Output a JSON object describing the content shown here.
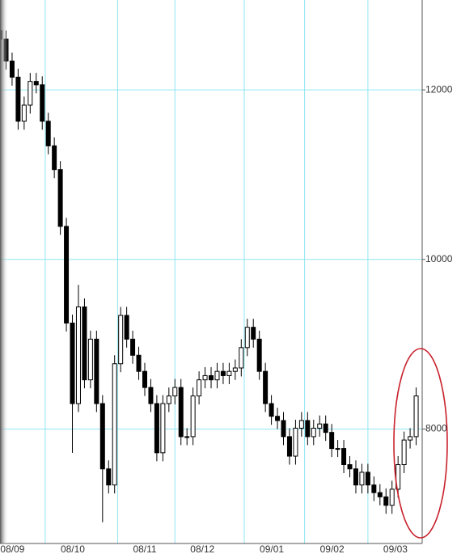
{
  "chart_data": {
    "type": "candlestick",
    "x": [
      0,
      2,
      4,
      6,
      8,
      10,
      12,
      14,
      16,
      18,
      20,
      22,
      24,
      26,
      28,
      30,
      32,
      34,
      36,
      38,
      40,
      42,
      44,
      46,
      48,
      50,
      52,
      54,
      56,
      58,
      60,
      62,
      64,
      66,
      68,
      70,
      72,
      74,
      76,
      78,
      80,
      82,
      84,
      86,
      88,
      90,
      92,
      94,
      96,
      98,
      100,
      102,
      104,
      106,
      108,
      110,
      112,
      114,
      116,
      118,
      120,
      122,
      124,
      126,
      128,
      130,
      132,
      134,
      136,
      138
    ],
    "open": [
      12700,
      12600,
      12340,
      12150,
      11630,
      11820,
      12100,
      12060,
      11630,
      11340,
      11060,
      10390,
      9250,
      8300,
      9440,
      8580,
      9060,
      8300,
      7530,
      7340,
      8770,
      9340,
      9060,
      8870,
      8680,
      8490,
      8300,
      7720,
      8300,
      8390,
      8490,
      7910,
      7910,
      8390,
      8580,
      8630,
      8580,
      8680,
      8630,
      8680,
      8720,
      8960,
      9200,
      9060,
      8680,
      8300,
      8150,
      8100,
      7910,
      7680,
      8010,
      8100,
      7910,
      8010,
      8060,
      7960,
      7770,
      7770,
      7580,
      7530,
      7340,
      7490,
      7340,
      7250,
      7200,
      7100,
      7290,
      7580,
      7870,
      7910
    ],
    "high": [
      12800,
      12700,
      12440,
      12250,
      11920,
      12200,
      12200,
      12160,
      11730,
      11440,
      11160,
      10490,
      9350,
      9700,
      9540,
      9160,
      9160,
      8400,
      7630,
      8870,
      9440,
      9440,
      9160,
      8970,
      8780,
      8590,
      8400,
      8400,
      8490,
      8590,
      8590,
      8010,
      8490,
      8680,
      8730,
      8730,
      8780,
      8780,
      8780,
      8820,
      9060,
      9300,
      9300,
      9160,
      8780,
      8400,
      8250,
      8200,
      8010,
      8110,
      8200,
      8200,
      8110,
      8160,
      8160,
      8060,
      7870,
      7870,
      7680,
      7630,
      7590,
      7590,
      7440,
      7350,
      7300,
      7390,
      7680,
      7970,
      8010,
      8490
    ],
    "low": [
      12500,
      12240,
      12050,
      11530,
      11530,
      11720,
      11960,
      11530,
      11240,
      10960,
      10290,
      9150,
      7720,
      8200,
      8480,
      8480,
      8200,
      6900,
      7240,
      7240,
      8670,
      8960,
      8770,
      8580,
      8390,
      8200,
      7620,
      7620,
      8200,
      8290,
      7810,
      7810,
      7810,
      8290,
      8480,
      8480,
      8480,
      8530,
      8530,
      8580,
      8620,
      8860,
      8960,
      8580,
      8200,
      8050,
      8000,
      7810,
      7580,
      7580,
      7910,
      7810,
      7810,
      7910,
      7860,
      7670,
      7670,
      7480,
      7430,
      7240,
      7240,
      7240,
      7150,
      7100,
      7000,
      7000,
      7190,
      7480,
      7770,
      7810
    ],
    "close": [
      12600,
      12340,
      12150,
      11630,
      11820,
      12100,
      12060,
      11630,
      11340,
      11060,
      10390,
      9250,
      8300,
      9440,
      8580,
      9060,
      8300,
      7530,
      7340,
      8770,
      9340,
      9060,
      8870,
      8680,
      8490,
      8300,
      7720,
      8300,
      8390,
      8490,
      7910,
      7910,
      8390,
      8580,
      8630,
      8580,
      8680,
      8630,
      8680,
      8720,
      8960,
      9200,
      9060,
      8680,
      8300,
      8150,
      8100,
      7910,
      7680,
      8010,
      8100,
      7910,
      8010,
      8060,
      7960,
      7770,
      7770,
      7580,
      7530,
      7340,
      7490,
      7340,
      7250,
      7200,
      7100,
      7290,
      7580,
      7870,
      7910,
      8390
    ],
    "color": "#000000",
    "xlim": [
      -5,
      140
    ],
    "xticks": [
      {
        "value": -5,
        "label": "08/09"
      },
      {
        "value": 15,
        "label": "08/10"
      },
      {
        "value": 39,
        "label": "08/11"
      },
      {
        "value": 58,
        "label": "08/12"
      },
      {
        "value": 81,
        "label": "09/01"
      },
      {
        "value": 101,
        "label": "09/02"
      },
      {
        "value": 122,
        "label": "09/03"
      }
    ],
    "ylim": [
      6650,
      13060
    ],
    "yticks": [
      8000,
      10000,
      12000
    ],
    "grid": true
  }
}
